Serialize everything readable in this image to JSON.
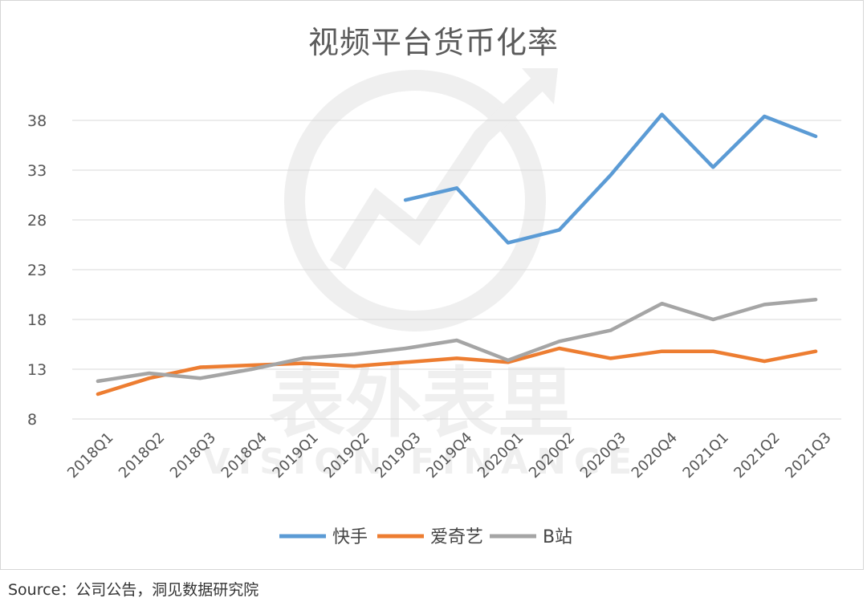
{
  "chart_data": {
    "type": "line",
    "title": "视频平台货币化率",
    "categories": [
      "2018Q1",
      "2018Q2",
      "2018Q3",
      "2018Q4",
      "2019Q1",
      "2019Q2",
      "2019Q3",
      "2019Q4",
      "2020Q1",
      "2020Q2",
      "2020Q3",
      "2020Q4",
      "2021Q1",
      "2021Q2",
      "2021Q3"
    ],
    "yticks": [
      8,
      13,
      18,
      23,
      28,
      33,
      38
    ],
    "ylim": [
      8,
      38
    ],
    "grid": true,
    "legend_position": "bottom",
    "series": [
      {
        "name": "快手",
        "color": "#5b9bd5",
        "values": [
          null,
          null,
          null,
          null,
          null,
          null,
          30.0,
          31.2,
          25.7,
          27.0,
          32.5,
          38.6,
          33.3,
          38.4,
          36.4
        ]
      },
      {
        "name": "爱奇艺",
        "color": "#ed7d31",
        "values": [
          10.5,
          12.1,
          13.2,
          13.4,
          13.6,
          13.3,
          13.7,
          14.1,
          13.7,
          15.1,
          14.1,
          14.8,
          14.8,
          13.8,
          14.8
        ]
      },
      {
        "name": "B站",
        "color": "#a5a5a5",
        "values": [
          11.8,
          12.6,
          12.1,
          13.0,
          14.1,
          14.5,
          15.1,
          15.9,
          13.9,
          15.8,
          16.9,
          19.6,
          18.0,
          19.5,
          20.0
        ]
      }
    ]
  },
  "source": "Source：公司公告，洞见数据研究院",
  "watermark": {
    "text_cn": "表外表里",
    "text_en": "VISION FINANCE"
  }
}
